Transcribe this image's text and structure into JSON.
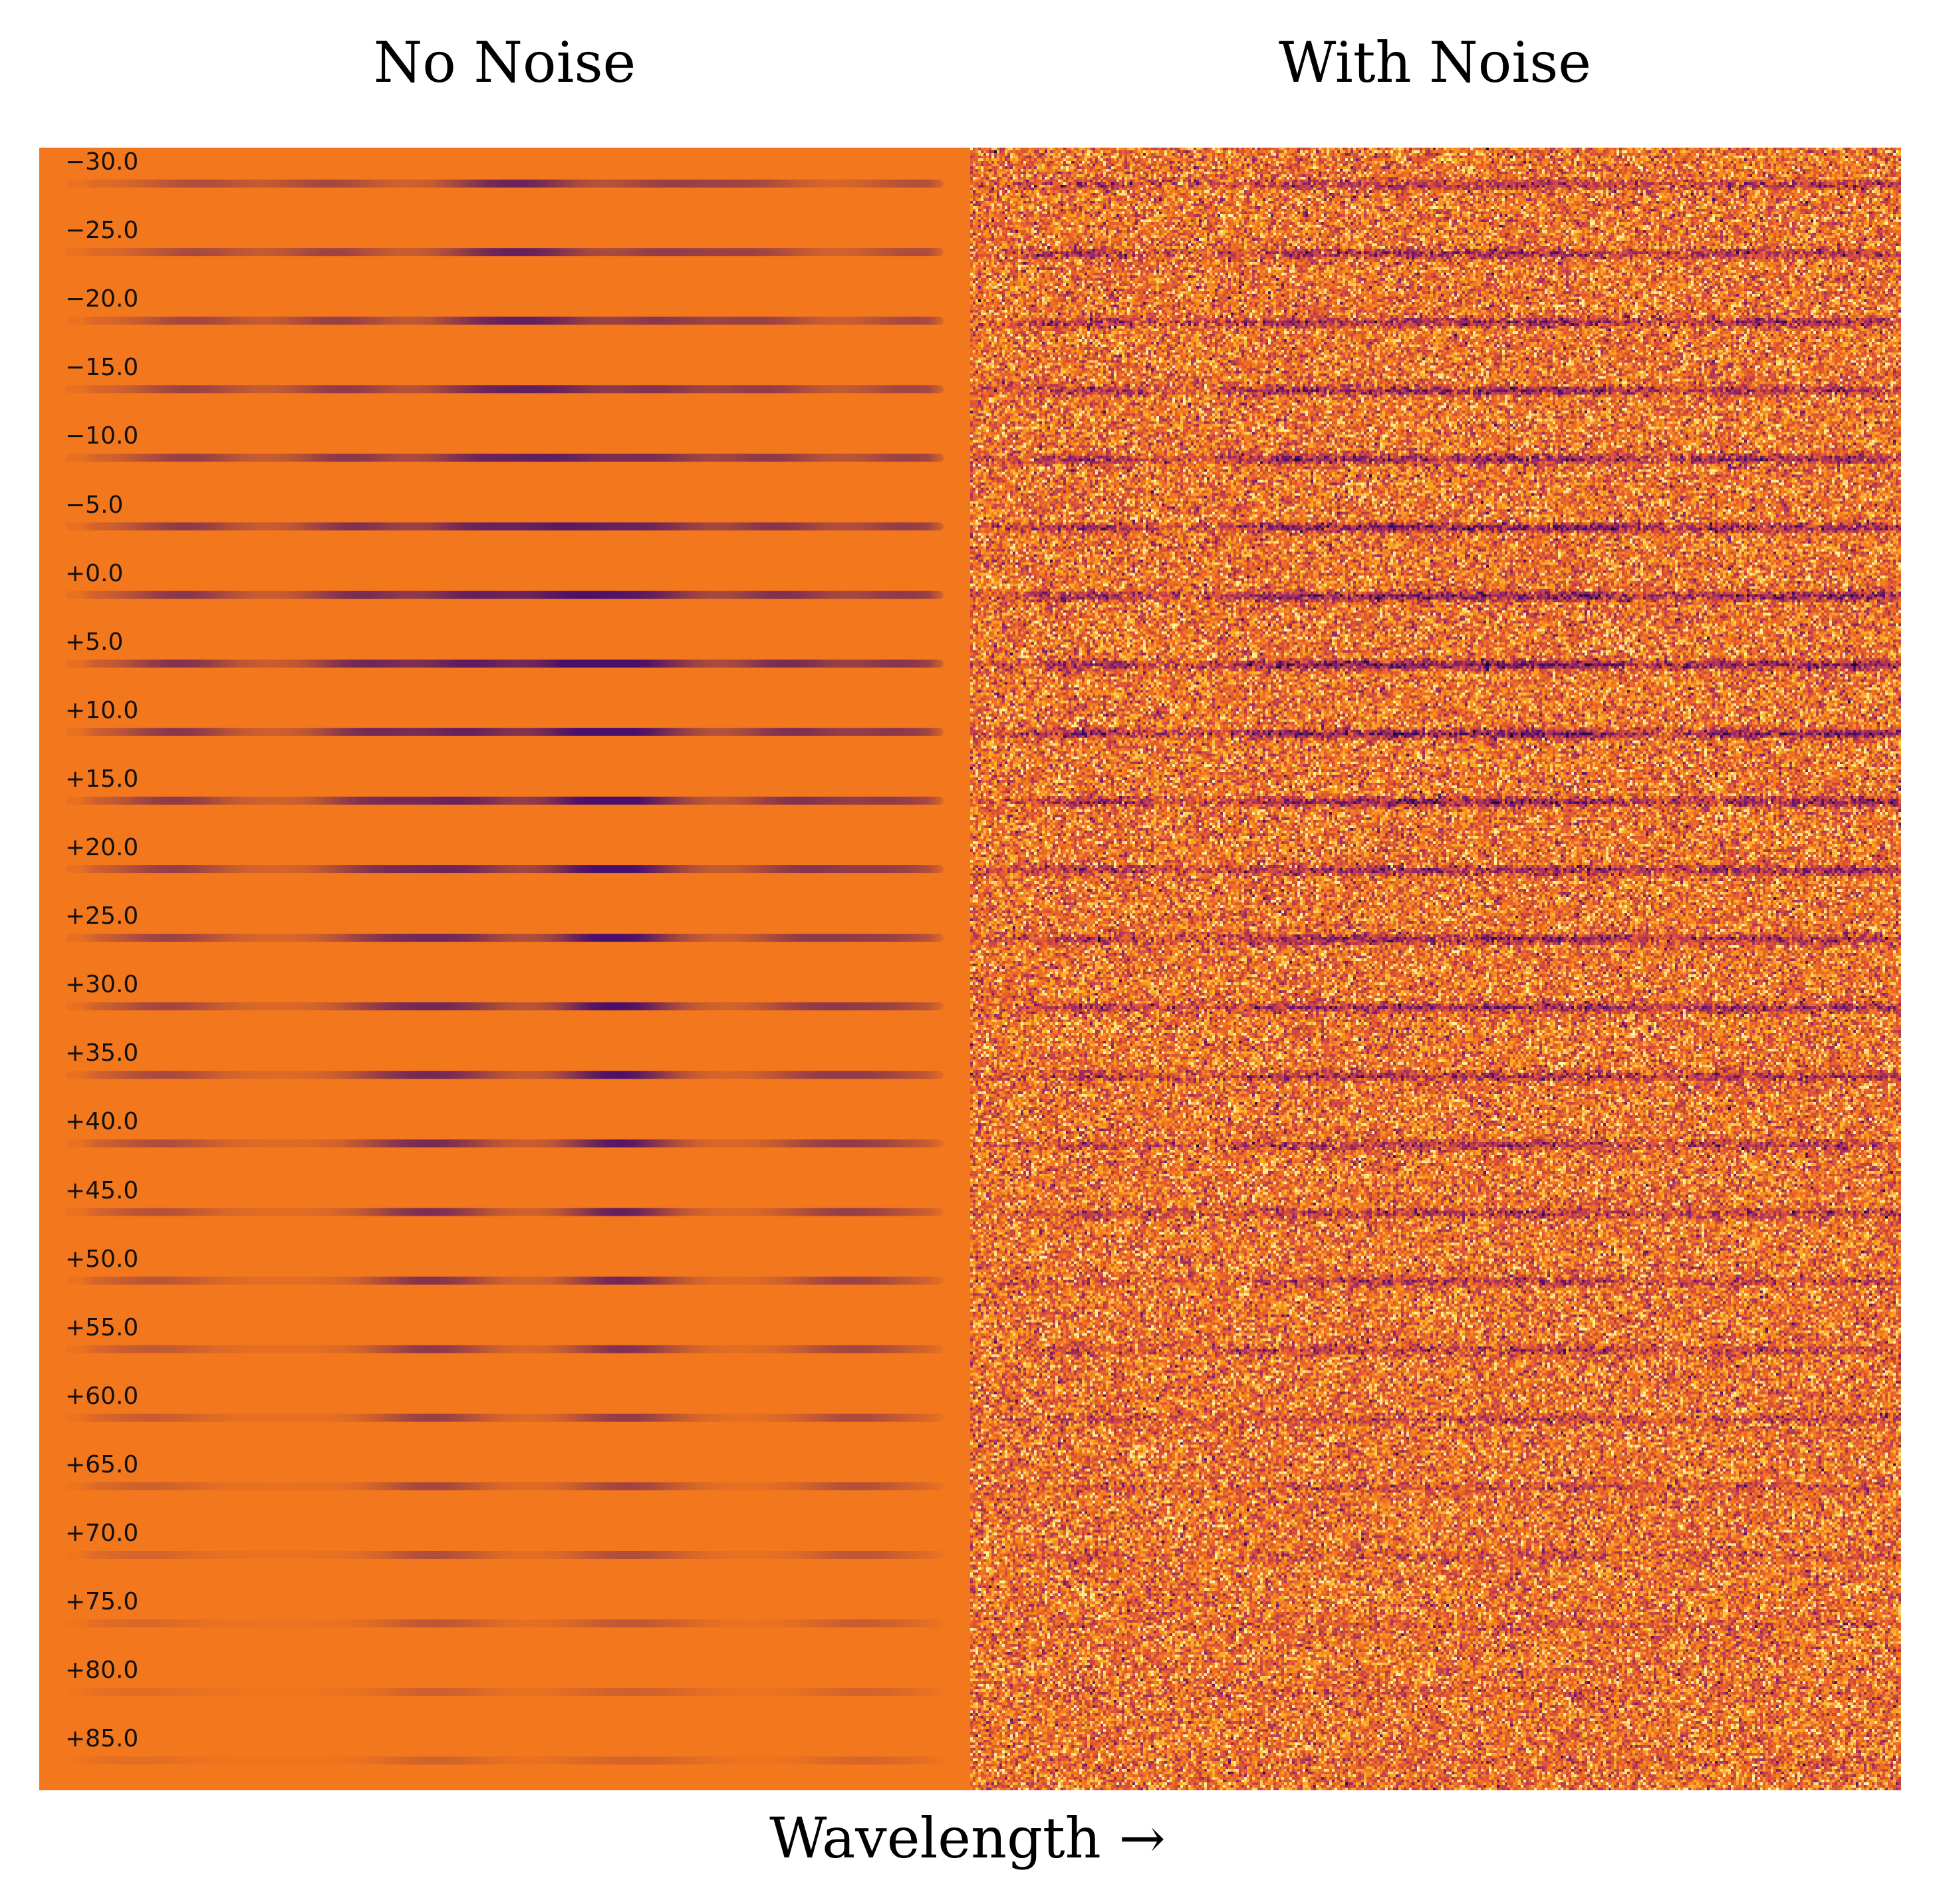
{
  "chart_data": [
    {
      "type": "heatmap",
      "title": "No Noise",
      "xlabel": "Wavelength →",
      "colormap": "inferno",
      "background_color": "#f3771c",
      "line_color": "#4a0f6a",
      "row_labels": [
        "−30.0",
        "−25.0",
        "−20.0",
        "−15.0",
        "−10.0",
        "−5.0",
        "+0.0",
        "+5.0",
        "+10.0",
        "+15.0",
        "+20.0",
        "+25.0",
        "+30.0",
        "+35.0",
        "+40.0",
        "+45.0",
        "+50.0",
        "+55.0",
        "+60.0",
        "+65.0",
        "+70.0",
        "+75.0",
        "+80.0",
        "+85.0"
      ],
      "row_values": [
        -30,
        -25,
        -20,
        -15,
        -10,
        -5,
        0,
        5,
        10,
        15,
        20,
        25,
        30,
        35,
        40,
        45,
        50,
        55,
        60,
        65,
        70,
        75,
        80,
        85
      ],
      "absorption_centers_fraction": [
        0.13,
        0.34,
        0.46,
        0.58,
        0.66,
        0.82,
        0.95
      ],
      "absorption_strength_peak_row": 7,
      "noise": false
    },
    {
      "type": "heatmap",
      "title": "With Noise",
      "xlabel": "Wavelength →",
      "colormap": "inferno",
      "background_color": "#f3771c",
      "row_values": [
        -30,
        -25,
        -20,
        -15,
        -10,
        -5,
        0,
        5,
        10,
        15,
        20,
        25,
        30,
        35,
        40,
        45,
        50,
        55,
        60,
        65,
        70,
        75,
        80,
        85
      ],
      "noise": true
    }
  ],
  "xlabel": "Wavelength →"
}
